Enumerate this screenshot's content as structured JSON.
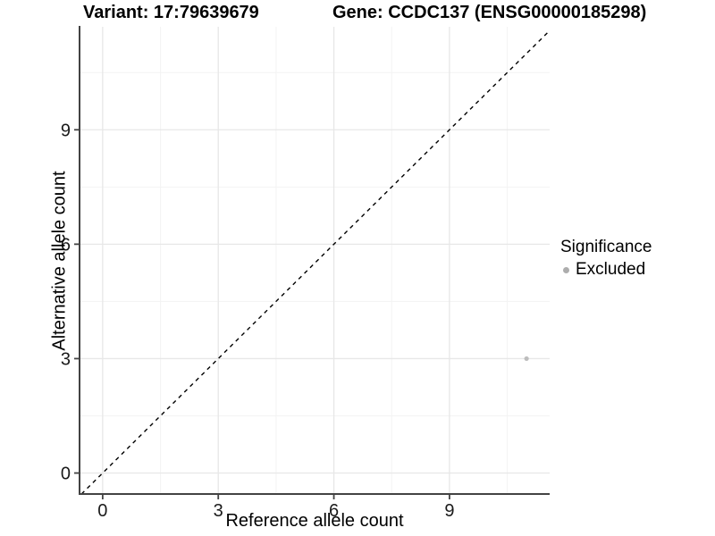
{
  "chart_data": {
    "type": "scatter",
    "title_variant": "Variant: 17:79639679",
    "title_gene": "Gene: CCDC137 (ENSG00000185298)",
    "xlabel": "Reference allele count",
    "ylabel": "Alternative allele count",
    "xlim": [
      -0.6,
      11.6
    ],
    "ylim": [
      -0.55,
      11.7
    ],
    "x_breaks": [
      0,
      3,
      6,
      9
    ],
    "y_breaks": [
      0,
      3,
      6,
      9
    ],
    "x_minor_breaks": [
      1.5,
      4.5,
      7.5,
      10.5
    ],
    "y_minor_breaks": [
      1.5,
      4.5,
      7.5,
      10.5
    ],
    "grid": true,
    "reference_line": {
      "kind": "identity",
      "style": "dashed",
      "color": "#000000"
    },
    "series": [
      {
        "name": "Excluded",
        "color": "#bdbdbd",
        "points": [
          {
            "x": 11,
            "y": 3
          }
        ]
      }
    ],
    "legend": {
      "title": "Significance",
      "position": "right",
      "items": [
        {
          "label": "Excluded",
          "color": "#adadad"
        }
      ]
    },
    "colors": {
      "grid_major": "#e7e7e7",
      "grid_minor": "#f3f3f3",
      "axis_line": "#434343",
      "tick_text": "#1a1a1a"
    }
  }
}
